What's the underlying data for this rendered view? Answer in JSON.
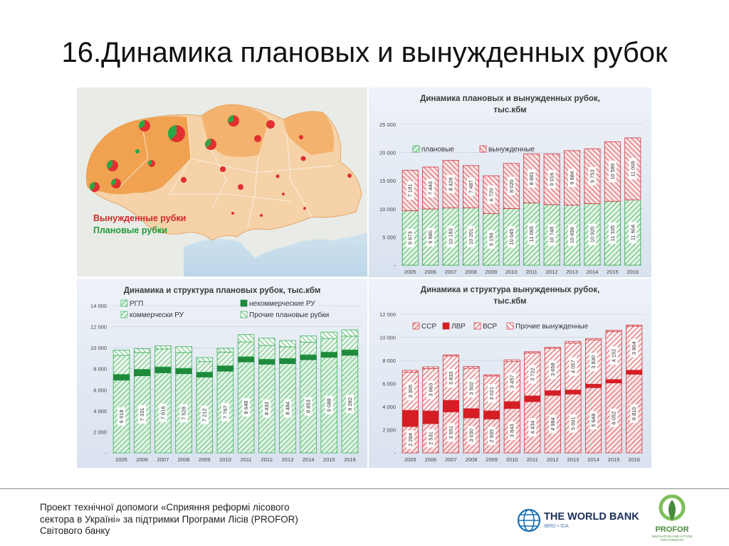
{
  "slide": {
    "title": "16.Динамика плановых и вынужденных рубок"
  },
  "map": {
    "legend_forced": "Вынужденные рубки",
    "legend_planned": "Плановые рубки",
    "forced_color": "#e03030",
    "planned_color": "#2aa745"
  },
  "footer": {
    "text_line1": "Проект технічної допомоги «Сприяння реформі лісового",
    "text_line2": "сектора в Україні» за підтримки Програми Лісів (PROFOR)",
    "text_line3": "Світового банку",
    "worldbank_name": "THE WORLD BANK",
    "worldbank_sub": "IBRD • IDA",
    "profor_name": "PROFOR",
    "profor_sub_line1": "INNOVATION AND ACTION",
    "profor_sub_line2": "FOR FORESTS"
  },
  "chart_data": [
    {
      "id": "c1",
      "type": "bar",
      "stacked": true,
      "title_line1": "Динамика плановых и вынужденных рубок,",
      "title_line2": "тыс.кбм",
      "categories": [
        "2005",
        "2006",
        "2007",
        "2008",
        "2009",
        "2010",
        "2011",
        "2012",
        "2013",
        "2014",
        "2015",
        "2016"
      ],
      "ylim": [
        0,
        25000
      ],
      "yticks": [
        0,
        5000,
        10000,
        15000,
        20000,
        25000
      ],
      "ytick_labels": [
        "-",
        "5 000",
        "10 000",
        "15 000",
        "20 000",
        "25 000"
      ],
      "legend": "top-left",
      "series": [
        {
          "name": "плановые",
          "values": [
            9673,
            9980,
            10183,
            10201,
            9156,
            10045,
            11065,
            10748,
            10656,
            10920,
            11335,
            11604
          ],
          "labels": [
            "9 673",
            "9 980",
            "10 183",
            "10 201",
            "9 156",
            "10 045",
            "11 065",
            "10 748",
            "10 656",
            "10 920",
            "11 335",
            "11 604"
          ],
          "color": "#2aa745",
          "fill": "#e3f4e6"
        },
        {
          "name": "вынужденные",
          "values": [
            7181,
            7443,
            8426,
            7487,
            6720,
            8020,
            8681,
            9016,
            9684,
            9753,
            10589,
            11009
          ],
          "labels": [
            "7 181",
            "7 443",
            "8 426",
            "7 487",
            "6 720",
            "8 020",
            "8 681",
            "9 016",
            "9 684",
            "9 753",
            "10 589",
            "11 009"
          ],
          "color": "#d0343c",
          "fill": "#fbe4e5"
        }
      ]
    },
    {
      "id": "c2",
      "type": "bar",
      "stacked": true,
      "title_line1": "Динамика и структура плановых рубок, тыс.кбм",
      "title_line2": "",
      "categories": [
        "2005",
        "2006",
        "2007",
        "2008",
        "2009",
        "2010",
        "2011",
        "2012",
        "2013",
        "2014",
        "2015",
        "2016"
      ],
      "ylim": [
        0,
        14000
      ],
      "yticks": [
        0,
        2000,
        4000,
        6000,
        8000,
        10000,
        12000,
        14000
      ],
      "ytick_labels": [
        "-",
        "2 000",
        "4 000",
        "6 000",
        "8 000",
        "10 000",
        "12 000",
        "14 000"
      ],
      "legend": "top-left",
      "series": [
        {
          "name": "РГП",
          "values": [
            6918,
            7331,
            7616,
            7528,
            7212,
            7767,
            8648,
            8433,
            8484,
            8853,
            9088,
            9282
          ],
          "labels": [
            "6 918",
            "7 331",
            "7 616",
            "7 528",
            "7 212",
            "7 767",
            "8 648",
            "8 433",
            "8 484",
            "8 853",
            "9 088",
            "9 282"
          ],
          "color": "#3cb25a",
          "fill": "#dff2e3"
        },
        {
          "name": "некоммерческие РУ",
          "values": [
            550,
            620,
            560,
            520,
            470,
            520,
            500,
            480,
            500,
            480,
            500,
            520
          ],
          "color": "#1f8a3c",
          "fill": "#1f8a3c"
        },
        {
          "name": "коммерчески РУ",
          "values": [
            1800,
            1600,
            1700,
            1500,
            1000,
            1300,
            1400,
            1300,
            1100,
            1200,
            1300,
            1300
          ],
          "color": "#3cb25a",
          "fill": "#ecf7ee"
        },
        {
          "name": "Прочие плановые рубки",
          "values": [
            500,
            350,
            300,
            550,
            380,
            350,
            700,
            700,
            600,
            600,
            600,
            600
          ],
          "color": "#3cb25a",
          "fill": "#f6fbf7"
        }
      ]
    },
    {
      "id": "c3",
      "type": "bar",
      "stacked": true,
      "title_line1": "Динамика и структура вынужденных рубок,",
      "title_line2": "тыс.кбм",
      "categories": [
        "2005",
        "2006",
        "2007",
        "2008",
        "2009",
        "2010",
        "2011",
        "2012",
        "2013",
        "2014",
        "2015",
        "2016"
      ],
      "ylim": [
        0,
        12000
      ],
      "yticks": [
        0,
        2000,
        4000,
        6000,
        8000,
        10000,
        12000
      ],
      "ytick_labels": [
        "-",
        "2 000",
        "4 000",
        "6 000",
        "8 000",
        "10 000",
        "12 000"
      ],
      "legend": "top-left",
      "series": [
        {
          "name": "ССР",
          "values": [
            2284,
            2531,
            3551,
            3030,
            2935,
            3843,
            4434,
            4984,
            5091,
            5648,
            6052,
            6810
          ],
          "labels": [
            "2 284",
            "2 531",
            "3 551",
            "3 030",
            "2 935",
            "3 843",
            "4 434",
            "4 984",
            "5 091",
            "5 648",
            "6 052",
            "6 810"
          ],
          "color": "#d0343c",
          "fill": "#fbe4e5"
        },
        {
          "name": "ЛВР",
          "values": [
            1400,
            1100,
            1000,
            800,
            700,
            600,
            500,
            400,
            350,
            300,
            300,
            350
          ],
          "color": "#d41e24",
          "fill": "#d41e24"
        },
        {
          "name": "ВСР",
          "values": [
            3305,
            3663,
            3833,
            3502,
            3021,
            3457,
            3722,
            3658,
            4057,
            3830,
            4152,
            3804
          ],
          "labels": [
            "3 305",
            "3 663",
            "3 833",
            "3 502",
            "3 021",
            "3 457",
            "3 722",
            "3 658",
            "4 057",
            "3 830",
            "4 152",
            "3 804"
          ],
          "color": "#d0343c",
          "fill": "#fdf0f0"
        },
        {
          "name": "Прочие вынужденные",
          "values": [
            150,
            150,
            100,
            150,
            100,
            150,
            100,
            100,
            150,
            100,
            100,
            100
          ],
          "color": "#d0343c",
          "fill": "#ffffff"
        }
      ]
    }
  ]
}
